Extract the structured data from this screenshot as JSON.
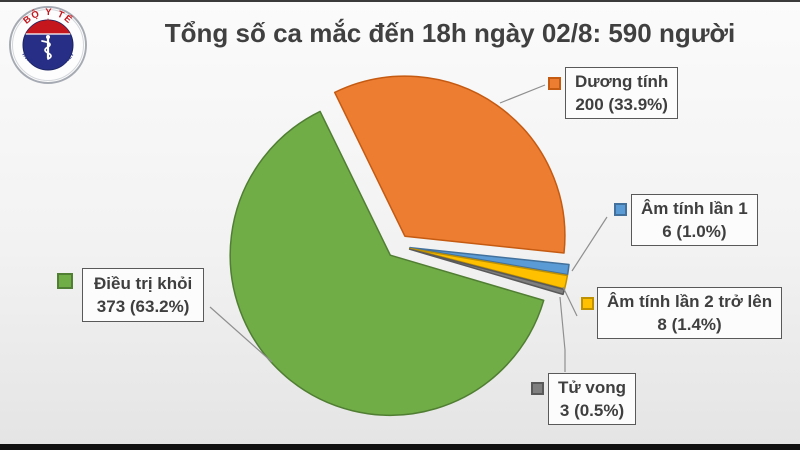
{
  "header": {
    "title": "Tổng số ca mắc đến 18h ngày 02/8: 590 người"
  },
  "logo": {
    "top_text": "BỘ Y TẾ",
    "bottom_text": "MINISTRY OF HEALTH"
  },
  "chart_data": {
    "type": "pie",
    "title": "Tổng số ca mắc đến 18h ngày 02/8: 590 người",
    "total": 590,
    "start_angle_deg": -26,
    "direction": "clockwise",
    "exploded": true,
    "legend_position": "callouts",
    "slices": [
      {
        "label": "Dương tính",
        "value": 200,
        "pct": 33.9,
        "color": "#ED7D31",
        "border": "#C55A11"
      },
      {
        "label": "Âm tính lần 1",
        "value": 6,
        "pct": 1.0,
        "color": "#5B9BD5",
        "border": "#41719C"
      },
      {
        "label": "Âm tính lần 2 trở lên",
        "value": 8,
        "pct": 1.4,
        "color": "#FFC000",
        "border": "#BF9000"
      },
      {
        "label": "Tử vong",
        "value": 3,
        "pct": 0.5,
        "color": "#7F7F7F",
        "border": "#595959"
      },
      {
        "label": "Điều trị khỏi",
        "value": 373,
        "pct": 63.2,
        "color": "#70AD47",
        "border": "#507E32"
      }
    ]
  },
  "callouts": [
    {
      "line1": "Dương tính",
      "line2": "200 (33.9%)"
    },
    {
      "line1": "Âm tính lần 1",
      "line2": "6 (1.0%)"
    },
    {
      "line1": "Âm tính lần 2 trở lên",
      "line2": "8 (1.4%)"
    },
    {
      "line1": "Tử vong",
      "line2": "3 (0.5%)"
    },
    {
      "line1": "Điều trị khỏi",
      "line2": "373 (63.2%)"
    }
  ]
}
